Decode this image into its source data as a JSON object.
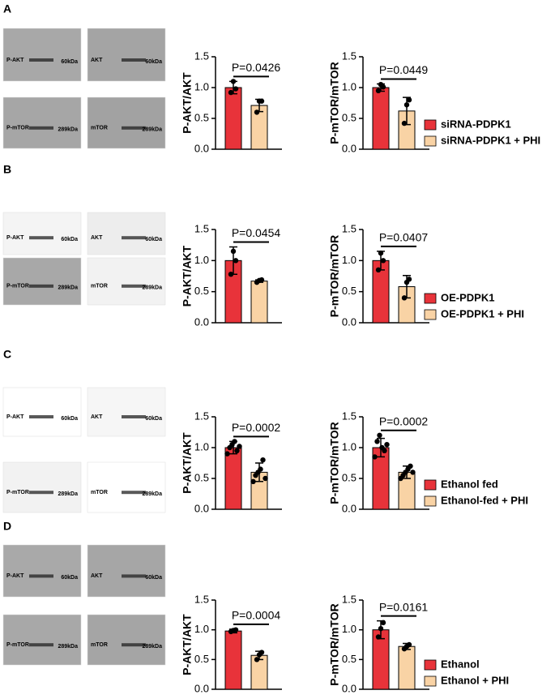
{
  "panels": [
    {
      "label": "A",
      "blots": [
        {
          "label": "P-AKT",
          "size": "60kDa"
        },
        {
          "label": "AKT",
          "size": "60kDa"
        },
        {
          "label": "P-mTOR",
          "size": "289kDa"
        },
        {
          "label": "mTOR",
          "size": "289kDa"
        }
      ],
      "legend": [
        {
          "name": "siRNA-PDPK1",
          "color": "#e8333a"
        },
        {
          "name": "siRNA-PDPK1 + PHI",
          "color": "#f9d3a5"
        }
      ]
    },
    {
      "label": "B",
      "blots": [
        {
          "label": "P-AKT",
          "size": "60kDa"
        },
        {
          "label": "AKT",
          "size": "60kDa"
        },
        {
          "label": "P-mTOR",
          "size": "289kDa"
        },
        {
          "label": "mTOR",
          "size": "289kDa"
        }
      ],
      "legend": [
        {
          "name": "OE-PDPK1",
          "color": "#e8333a"
        },
        {
          "name": "OE-PDPK1 + PHI",
          "color": "#f9d3a5"
        }
      ]
    },
    {
      "label": "C",
      "blots": [
        {
          "label": "P-AKT",
          "size": "60kDa"
        },
        {
          "label": "AKT",
          "size": "60kDa"
        },
        {
          "label": "P-mTOR",
          "size": "289kDa"
        },
        {
          "label": "mTOR",
          "size": "289kDa"
        }
      ],
      "legend": [
        {
          "name": "Ethanol fed",
          "color": "#e8333a"
        },
        {
          "name": "Ethanol-fed + PHI",
          "color": "#f9d3a5"
        }
      ]
    },
    {
      "label": "D",
      "blots": [
        {
          "label": "P-AKT",
          "size": "60kDa"
        },
        {
          "label": "AKT",
          "size": "60kDa"
        },
        {
          "label": "P-mTOR",
          "size": "289kDa"
        },
        {
          "label": "mTOR",
          "size": "289kDa"
        }
      ],
      "legend": [
        {
          "name": "Ethanol",
          "color": "#e8333a"
        },
        {
          "name": "Ethanol + PHI",
          "color": "#f9d3a5"
        }
      ]
    }
  ],
  "chart_data": [
    {
      "type": "bar",
      "ylabel": "P-AKT/AKT",
      "annotation": "P=0.0426",
      "categories": [
        null,
        null
      ],
      "colors": [
        "#e8333a",
        "#f9d3a5"
      ],
      "values": [
        1.0,
        0.71
      ],
      "errors": [
        0.1,
        0.1
      ],
      "points": [
        [
          0.92,
          1.1,
          0.98
        ],
        [
          0.6,
          0.78,
          0.78
        ]
      ],
      "ylim": [
        0,
        1.5
      ],
      "yticks": [
        {
          "value": 0,
          "label": "0.0"
        },
        {
          "value": 0.5,
          "label": "0.5"
        },
        {
          "value": 1,
          "label": "1.0"
        },
        {
          "value": 1.5,
          "label": "1.5"
        }
      ]
    },
    {
      "type": "bar",
      "ylabel": "P-mTOR/mTOR",
      "annotation": "P=0.0449",
      "categories": [
        null,
        null
      ],
      "colors": [
        "#e8333a",
        "#f9d3a5"
      ],
      "values": [
        1.0,
        0.62
      ],
      "errors": [
        0.06,
        0.22
      ],
      "points": [
        [
          0.95,
          1.05,
          1.01
        ],
        [
          0.42,
          0.72,
          0.8
        ]
      ],
      "ylim": [
        0,
        1.5
      ],
      "yticks": [
        {
          "value": 0,
          "label": "0.0"
        },
        {
          "value": 0.5,
          "label": "0.5"
        },
        {
          "value": 1,
          "label": "1.0"
        },
        {
          "value": 1.5,
          "label": "1.5"
        }
      ]
    },
    {
      "type": "bar",
      "ylabel": "P-AKT/AKT",
      "annotation": "P=0.0454",
      "categories": [
        null,
        null
      ],
      "colors": [
        "#e8333a",
        "#f9d3a5"
      ],
      "values": [
        1.0,
        0.67
      ],
      "errors": [
        0.22,
        0.02
      ],
      "points": [
        [
          0.78,
          1.15,
          1.0
        ],
        [
          0.65,
          0.68,
          0.69
        ]
      ],
      "ylim": [
        0,
        1.5
      ],
      "yticks": [
        {
          "value": 0,
          "label": "0.0"
        },
        {
          "value": 0.5,
          "label": "0.5"
        },
        {
          "value": 1,
          "label": "1.0"
        },
        {
          "value": 1.5,
          "label": "1.5"
        }
      ]
    },
    {
      "type": "bar",
      "ylabel": "P-mTOR/mTOR",
      "annotation": "P=0.0407",
      "categories": [
        null,
        null
      ],
      "colors": [
        "#e8333a",
        "#f9d3a5"
      ],
      "values": [
        1.0,
        0.58
      ],
      "errors": [
        0.15,
        0.18
      ],
      "points": [
        [
          0.85,
          1.12,
          1.0
        ],
        [
          0.4,
          0.65,
          0.7
        ]
      ],
      "ylim": [
        0,
        1.5
      ],
      "yticks": [
        {
          "value": 0,
          "label": "0.0"
        },
        {
          "value": 0.5,
          "label": "0.5"
        },
        {
          "value": 1,
          "label": "1.0"
        },
        {
          "value": 1.5,
          "label": "1.5"
        }
      ]
    },
    {
      "type": "bar",
      "ylabel": "P-AKT/AKT",
      "annotation": "P=0.0002",
      "categories": [
        null,
        null
      ],
      "colors": [
        "#e8333a",
        "#f9d3a5"
      ],
      "values": [
        1.0,
        0.6
      ],
      "errors": [
        0.1,
        0.15
      ],
      "points": [
        [
          0.9,
          1.0,
          1.05,
          1.1,
          0.95,
          1.02
        ],
        [
          0.45,
          0.55,
          0.6,
          0.65,
          0.8,
          0.5
        ]
      ],
      "ylim": [
        0,
        1.5
      ],
      "yticks": [
        {
          "value": 0,
          "label": "0.0"
        },
        {
          "value": 0.5,
          "label": "0.5"
        },
        {
          "value": 1,
          "label": "1.0"
        },
        {
          "value": 1.5,
          "label": "1.5"
        }
      ]
    },
    {
      "type": "bar",
      "ylabel": "P-mTOR/mTOR",
      "annotation": "P=0.0002",
      "categories": [
        null,
        null
      ],
      "colors": [
        "#e8333a",
        "#f9d3a5"
      ],
      "values": [
        1.0,
        0.6
      ],
      "errors": [
        0.15,
        0.1
      ],
      "points": [
        [
          0.85,
          1.1,
          1.2,
          1.0,
          0.95,
          1.05
        ],
        [
          0.5,
          0.55,
          0.6,
          0.65,
          0.7,
          0.6
        ]
      ],
      "ylim": [
        0,
        1.5
      ],
      "yticks": [
        {
          "value": 0,
          "label": "0.0"
        },
        {
          "value": 0.5,
          "label": "0.5"
        },
        {
          "value": 1,
          "label": "1.0"
        },
        {
          "value": 1.5,
          "label": "1.5"
        }
      ]
    },
    {
      "type": "bar",
      "ylabel": "P-AKT/AKT",
      "annotation": "P=0.0004",
      "categories": [
        null,
        null
      ],
      "colors": [
        "#e8333a",
        "#f9d3a5"
      ],
      "values": [
        0.98,
        0.57
      ],
      "errors": [
        0.03,
        0.07
      ],
      "points": [
        [
          0.97,
          0.99,
          1.0
        ],
        [
          0.5,
          0.58,
          0.62
        ]
      ],
      "ylim": [
        0,
        1.5
      ],
      "yticks": [
        {
          "value": 0,
          "label": "0.0"
        },
        {
          "value": 0.5,
          "label": "0.5"
        },
        {
          "value": 1,
          "label": "1.0"
        },
        {
          "value": 1.5,
          "label": "1.5"
        }
      ]
    },
    {
      "type": "bar",
      "ylabel": "P-mTOR/mTOR",
      "annotation": "P=0.0161",
      "categories": [
        null,
        null
      ],
      "colors": [
        "#e8333a",
        "#f9d3a5"
      ],
      "values": [
        1.0,
        0.72
      ],
      "errors": [
        0.15,
        0.05
      ],
      "points": [
        [
          0.88,
          1.02,
          1.12
        ],
        [
          0.68,
          0.72,
          0.75
        ]
      ],
      "ylim": [
        0,
        1.5
      ],
      "yticks": [
        {
          "value": 0,
          "label": "0.0"
        },
        {
          "value": 0.5,
          "label": "0.5"
        },
        {
          "value": 1,
          "label": "1.0"
        },
        {
          "value": 1.5,
          "label": "1.5"
        }
      ]
    }
  ]
}
